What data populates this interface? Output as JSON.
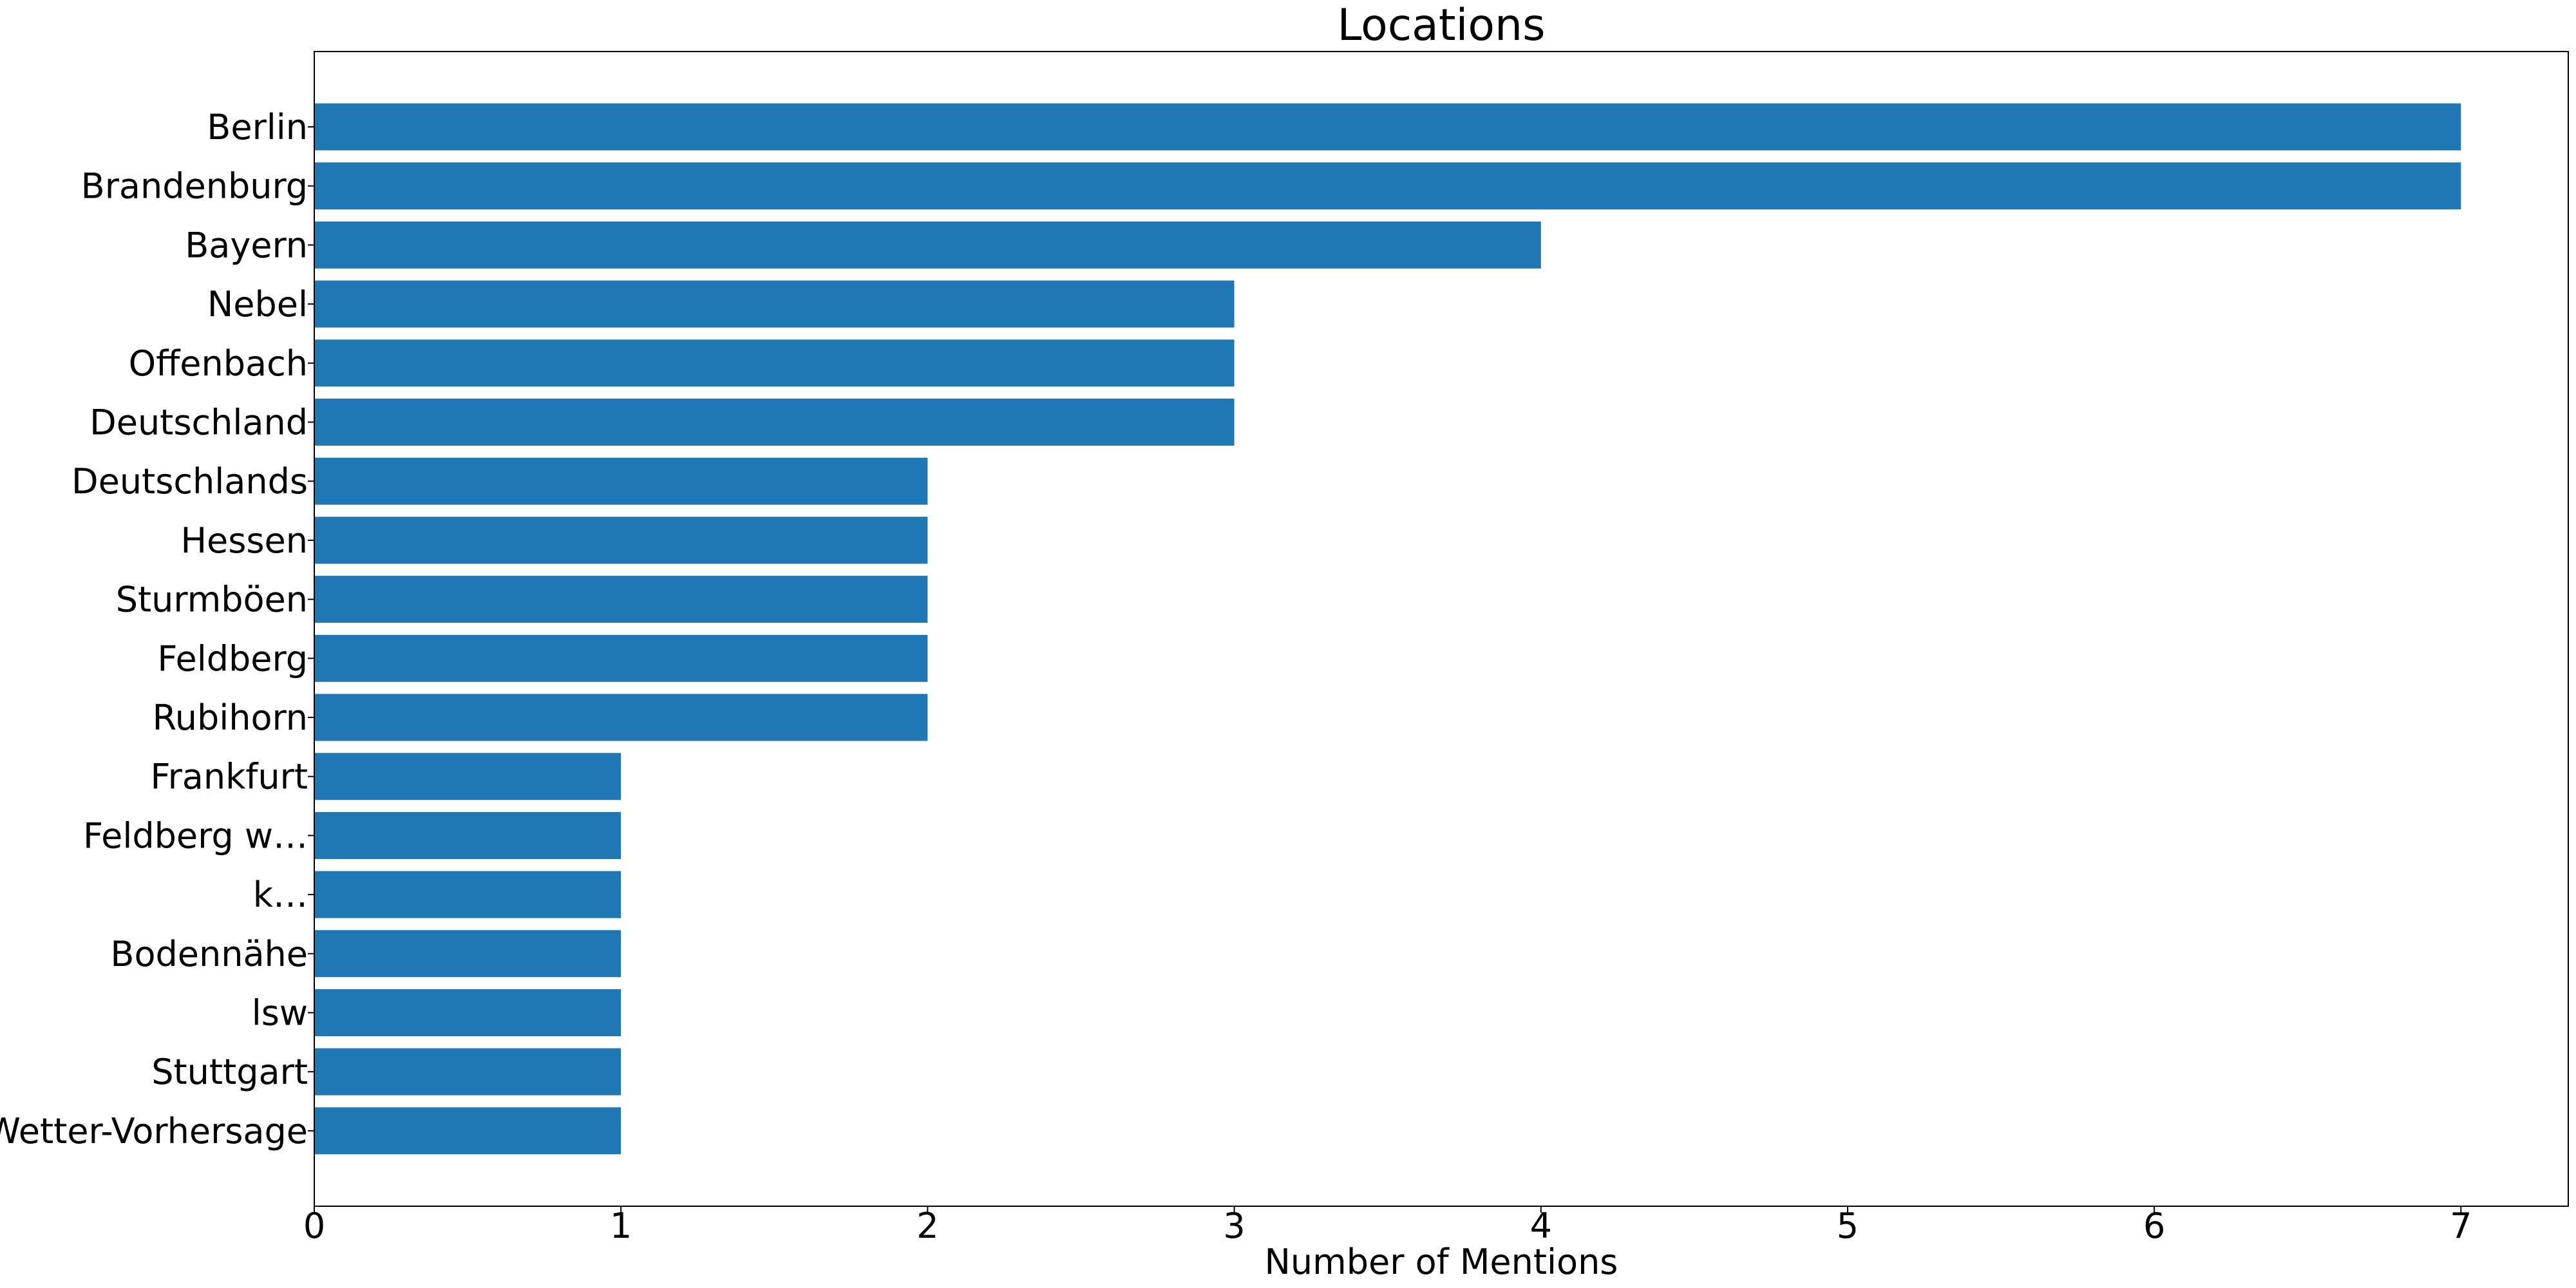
{
  "chart_data": {
    "type": "bar",
    "orientation": "horizontal",
    "title": "Locations",
    "xlabel": "Number of Mentions",
    "ylabel": "",
    "xlim": [
      0,
      7.35
    ],
    "xticks": [
      "0",
      "1",
      "2",
      "3",
      "4",
      "5",
      "6",
      "7"
    ],
    "categories": [
      "Berlin",
      "Brandenburg",
      "Bayern",
      "Nebel",
      "Offenbach",
      "Deutschland",
      "Deutschlands",
      "Hessen",
      "Sturmböen",
      "Feldberg",
      "Rubihorn",
      "Frankfurt",
      "Feldberg w…",
      "k…",
      "Bodennähe",
      "lsw",
      "Stuttgart",
      "Wetter-Vorhersage"
    ],
    "values": [
      7,
      7,
      4,
      3,
      3,
      3,
      2,
      2,
      2,
      2,
      2,
      1,
      1,
      1,
      1,
      1,
      1,
      1
    ],
    "bar_color": "#1f77b4",
    "grid": false,
    "legend": "none"
  }
}
